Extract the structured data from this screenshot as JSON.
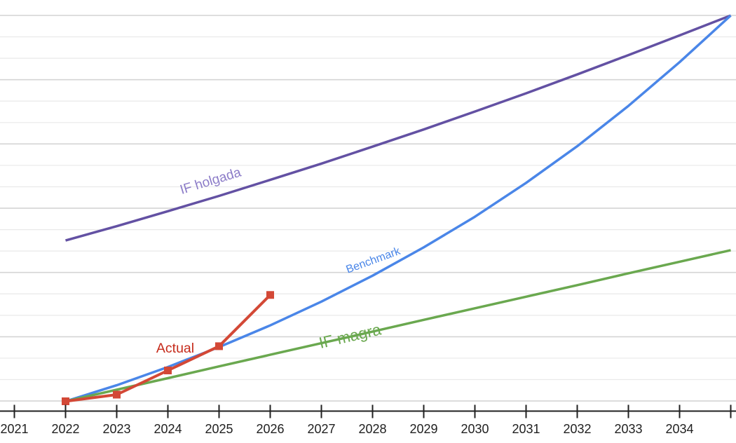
{
  "chart_data": {
    "type": "line",
    "title": "",
    "xlabel": "",
    "ylabel": "",
    "grid": true,
    "y_axis_labels_visible": false,
    "y_unit": "gridline-units (no y-axis labels shown; 1 unit = 1 minor gridline)",
    "ylim": [
      0,
      18
    ],
    "xlim": [
      2021,
      2035
    ],
    "series": [
      {
        "name": "if-holgada",
        "label": "IF holgada",
        "color": "#6351a3",
        "label_color": "#8c7cc8",
        "marker": "none",
        "x": [
          2022,
          2023,
          2024,
          2025,
          2026,
          2027,
          2028,
          2029,
          2030,
          2031,
          2032,
          2033,
          2034,
          2035
        ],
        "values": [
          7.5,
          8.17,
          8.87,
          9.58,
          10.33,
          11.09,
          11.88,
          12.68,
          13.52,
          14.37,
          15.25,
          16.15,
          17.07,
          18.0
        ]
      },
      {
        "name": "benchmark",
        "label": "Benchmark",
        "color": "#4a86e8",
        "label_color": "#4a86e8",
        "marker": "none",
        "x": [
          2022,
          2023,
          2024,
          2025,
          2026,
          2027,
          2028,
          2029,
          2030,
          2031,
          2032,
          2033,
          2034,
          2035
        ],
        "values": [
          0,
          0.75,
          1.6,
          2.53,
          3.54,
          4.65,
          5.86,
          7.18,
          8.61,
          10.19,
          11.9,
          13.78,
          15.82,
          18.0
        ]
      },
      {
        "name": "if-magra",
        "label": "IF magra",
        "color": "#6aa84f",
        "label_color": "#6aa84f",
        "marker": "none",
        "x": [
          2022,
          2023,
          2024,
          2025,
          2026,
          2027,
          2028,
          2029,
          2030,
          2031,
          2032,
          2033,
          2034,
          2035
        ],
        "values": [
          0,
          0.54,
          1.08,
          1.63,
          2.17,
          2.71,
          3.25,
          3.8,
          4.34,
          4.88,
          5.42,
          5.97,
          6.51,
          7.05
        ]
      },
      {
        "name": "actual",
        "label": "Actual",
        "color": "#d34836",
        "label_color": "#c52a1a",
        "marker": "square",
        "x": [
          2022,
          2023,
          2024,
          2025,
          2026
        ],
        "values": [
          0,
          0.31,
          1.44,
          2.57,
          4.96
        ]
      }
    ]
  },
  "axis": {
    "tick_labels": [
      "2021",
      "2022",
      "2023",
      "2024",
      "2025",
      "2026",
      "2027",
      "2028",
      "2029",
      "2030",
      "2031",
      "2032",
      "2033",
      "2034"
    ],
    "total_ticks": 15,
    "axis_color": "#212121",
    "major_grid_color": "#d4d4d4",
    "minor_grid_color": "#e9e9e9"
  },
  "annotations": {
    "if_holgada": "IF holgada",
    "benchmark": "Benchmark",
    "if_magra": "IF magra",
    "actual": "Actual"
  }
}
